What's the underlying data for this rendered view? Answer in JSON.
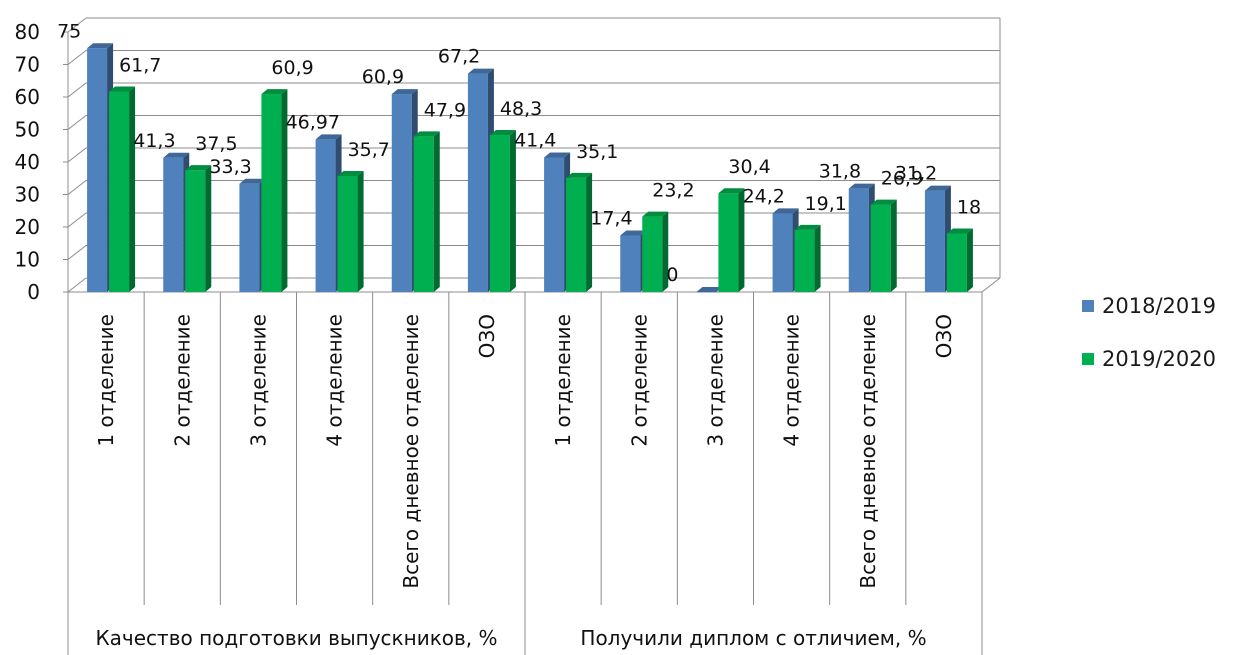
{
  "chart_data": {
    "type": "bar",
    "ylim": [
      0,
      80
    ],
    "yticks": [
      0,
      10,
      20,
      30,
      40,
      50,
      60,
      70,
      80
    ],
    "grid": true,
    "legend_position": "right",
    "groups": [
      {
        "label": "Качество подготовки выпускников, %",
        "categories": [
          "1 отделение",
          "2 отделение",
          "3 отделение",
          "4 отделение",
          "Всего дневное отделение",
          "ОЗО"
        ]
      },
      {
        "label": "Получили диплом с отличием, %",
        "categories": [
          "1 отделение",
          "2 отделение",
          "3 отделение",
          "4 отделение",
          "Всего дневное отделение",
          "ОЗО"
        ]
      }
    ],
    "series": [
      {
        "name": "2018/2019",
        "color": "#4f81bd",
        "values": [
          75,
          41.3,
          33.3,
          46.97,
          60.9,
          67.2,
          41.4,
          17.4,
          0,
          24.2,
          31.8,
          31.2
        ],
        "labels": [
          "75",
          "41,3",
          "33,3",
          "46,97",
          "60,9",
          "67,2",
          "41,4",
          "17,4",
          "0",
          "24,2",
          "31,8",
          "31,2"
        ]
      },
      {
        "name": "2019/2020",
        "color": "#00b050",
        "values": [
          61.7,
          37.5,
          60.9,
          35.7,
          47.9,
          48.3,
          35.1,
          23.2,
          30.4,
          19.1,
          26.9,
          18
        ],
        "labels": [
          "61,7",
          "37,5",
          "60,9",
          "35,7",
          "47,9",
          "48,3",
          "35,1",
          "23,2",
          "30,4",
          "19,1",
          "26,9",
          "18"
        ]
      }
    ]
  }
}
